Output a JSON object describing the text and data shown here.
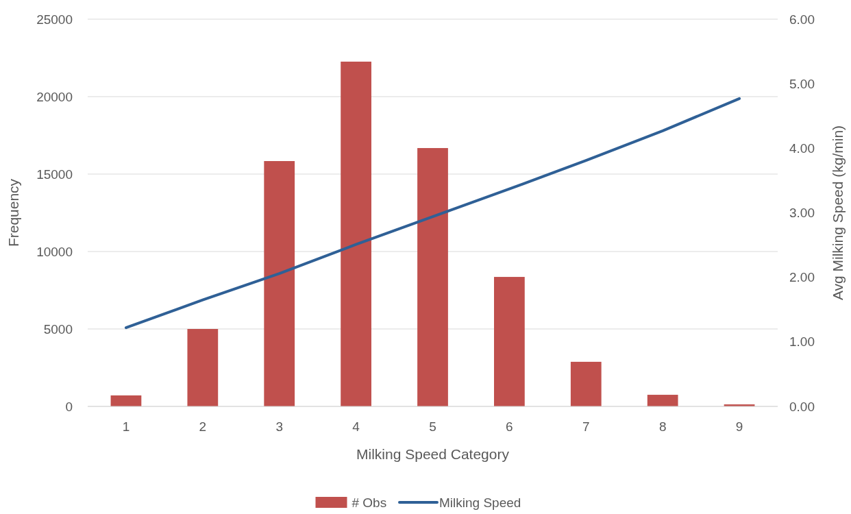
{
  "chart_data": {
    "type": "bar",
    "xlabel": "Milking Speed Category",
    "ylabel": "Frequency",
    "y2label": "Avg Milking Speed (kg/min)",
    "categories": [
      "1",
      "2",
      "3",
      "4",
      "5",
      "6",
      "7",
      "8",
      "9"
    ],
    "series": [
      {
        "name": "# Obs",
        "color": "#c0504d",
        "values": [
          710,
          5000,
          15840,
          22260,
          16680,
          8360,
          2880,
          750,
          130
        ]
      },
      {
        "name": "Milking Speed",
        "type": "line",
        "axis": "y2",
        "color": "#2f6096",
        "values": [
          1.22,
          1.65,
          2.06,
          2.51,
          2.94,
          3.37,
          3.81,
          4.27,
          4.77
        ]
      }
    ],
    "ylim": [
      0,
      25000
    ],
    "yticks": [
      0,
      5000,
      10000,
      15000,
      20000,
      25000
    ],
    "y2lim": [
      0,
      6
    ],
    "y2ticks": [
      {
        "value": 0,
        "label": "0.00"
      },
      {
        "value": 1,
        "label": "1.00"
      },
      {
        "value": 2,
        "label": "2.00"
      },
      {
        "value": 3,
        "label": "3.00"
      },
      {
        "value": 4,
        "label": "4.00"
      },
      {
        "value": 5,
        "label": "5.00"
      },
      {
        "value": 6,
        "label": "6.00"
      }
    ],
    "grid": "y",
    "legend": "bottom",
    "line_style": "solid",
    "marker": "none"
  }
}
